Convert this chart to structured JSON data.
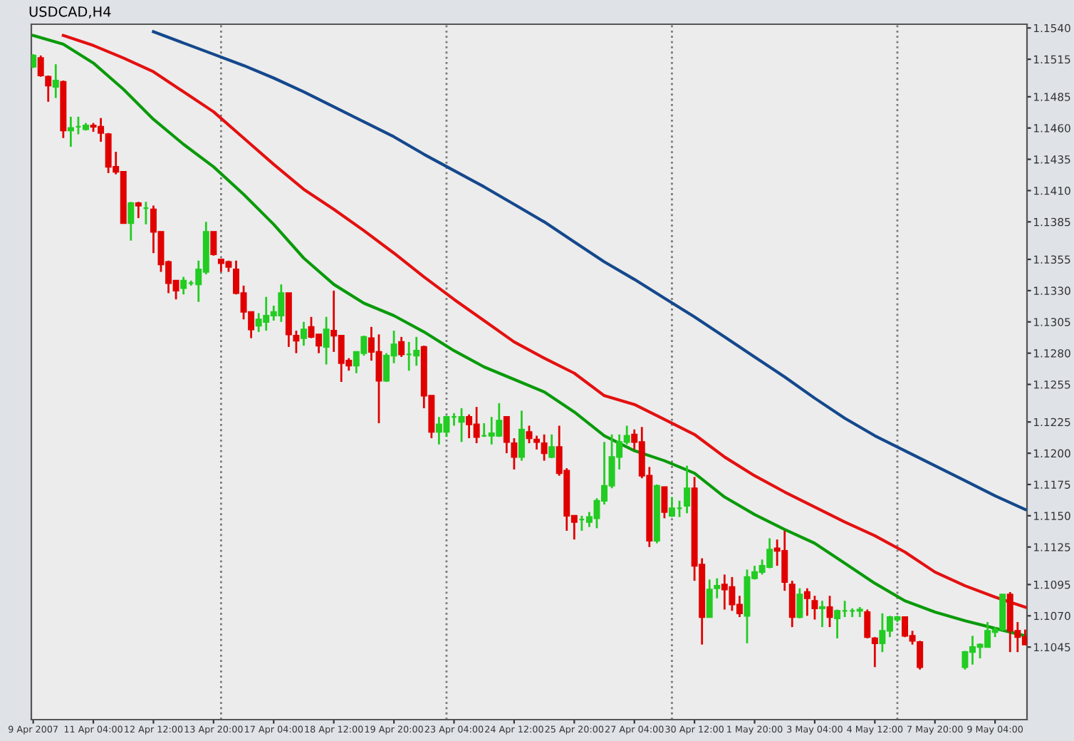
{
  "chart_data": {
    "type": "candlestick",
    "title": "USDCAD,H4",
    "categories": [
      "9 Apr 2007",
      null,
      null,
      null,
      null,
      null,
      null,
      null,
      "11 Apr 04:00",
      null,
      null,
      null,
      null,
      null,
      null,
      null,
      "12 Apr 12:00",
      null,
      null,
      null,
      null,
      null,
      null,
      null,
      "13 Apr 20:00",
      null,
      null,
      null,
      null,
      null,
      null,
      null,
      "17 Apr 04:00",
      null,
      null,
      null,
      null,
      null,
      null,
      null,
      "18 Apr 12:00",
      null,
      null,
      null,
      null,
      null,
      null,
      null,
      "19 Apr 20:00",
      null,
      null,
      null,
      null,
      null,
      null,
      null,
      "23 Apr 04:00",
      null,
      null,
      null,
      null,
      null,
      null,
      null,
      "24 Apr 12:00",
      null,
      null,
      null,
      null,
      null,
      null,
      null,
      "25 Apr 20:00",
      null,
      null,
      null,
      null,
      null,
      null,
      null,
      "27 Apr 04:00",
      null,
      null,
      null,
      null,
      null,
      null,
      null,
      "30 Apr 12:00",
      null,
      null,
      null,
      null,
      null,
      null,
      null,
      "1 May 20:00",
      null,
      null,
      null,
      null,
      null,
      null,
      null,
      "3 May 04:00",
      null,
      null,
      null,
      null,
      null,
      null,
      null,
      "4 May 12:00",
      null,
      null,
      null,
      null,
      null,
      null,
      null,
      "7 May 20:00",
      null,
      null,
      null,
      null,
      null,
      null,
      null,
      "9 May 04:00",
      null,
      null,
      null,
      null
    ],
    "ohlc": [
      [
        1.1509,
        1.1519,
        1.1508,
        1.1518
      ],
      [
        1.1516,
        1.1518,
        1.1501,
        1.1502
      ],
      [
        1.1501,
        1.1502,
        1.1481,
        1.1494
      ],
      [
        1.1493,
        1.1511,
        1.1484,
        1.1498
      ],
      [
        1.1497,
        1.1498,
        1.1452,
        1.1458
      ],
      [
        1.1458,
        1.1469,
        1.1445,
        1.146
      ],
      [
        1.1461,
        1.1469,
        1.1455,
        1.1461
      ],
      [
        1.1459,
        1.1464,
        1.1458,
        1.1462
      ],
      [
        1.1462,
        1.1464,
        1.1457,
        1.1461
      ],
      [
        1.1461,
        1.1468,
        1.1449,
        1.1456
      ],
      [
        1.1455,
        1.1456,
        1.1424,
        1.1429
      ],
      [
        1.1429,
        1.1441,
        1.1423,
        1.1425
      ],
      [
        1.1425,
        1.1425,
        1.1384,
        1.1384
      ],
      [
        1.1384,
        1.1401,
        1.137,
        1.14
      ],
      [
        1.14,
        1.1401,
        1.1388,
        1.1398
      ],
      [
        1.1396,
        1.1401,
        1.1383,
        1.1396
      ],
      [
        1.1395,
        1.1398,
        1.136,
        1.1377
      ],
      [
        1.1377,
        1.1377,
        1.1345,
        1.1351
      ],
      [
        1.1353,
        1.1354,
        1.1328,
        1.1336
      ],
      [
        1.1338,
        1.1338,
        1.1323,
        1.133
      ],
      [
        1.1332,
        1.1341,
        1.1327,
        1.1338
      ],
      [
        1.1336,
        1.1338,
        1.1334,
        1.1336
      ],
      [
        1.1335,
        1.1354,
        1.1321,
        1.1347
      ],
      [
        1.1345,
        1.1385,
        1.1343,
        1.1377
      ],
      [
        1.1377,
        1.1377,
        1.1358,
        1.1359
      ],
      [
        1.1355,
        1.1355,
        1.1345,
        1.1352
      ],
      [
        1.1353,
        1.1354,
        1.1345,
        1.1349
      ],
      [
        1.1347,
        1.1354,
        1.1327,
        1.1328
      ],
      [
        1.1328,
        1.1334,
        1.1307,
        1.1313
      ],
      [
        1.1313,
        1.1313,
        1.1292,
        1.1299
      ],
      [
        1.1302,
        1.1312,
        1.1297,
        1.1307
      ],
      [
        1.1305,
        1.1325,
        1.1298,
        1.131
      ],
      [
        1.131,
        1.1318,
        1.1306,
        1.1313
      ],
      [
        1.131,
        1.1335,
        1.1305,
        1.1328
      ],
      [
        1.1328,
        1.1328,
        1.1285,
        1.1295
      ],
      [
        1.1294,
        1.1298,
        1.128,
        1.129
      ],
      [
        1.1292,
        1.1305,
        1.1286,
        1.1299
      ],
      [
        1.1301,
        1.1309,
        1.1292,
        1.1293
      ],
      [
        1.1295,
        1.1295,
        1.128,
        1.1286
      ],
      [
        1.1285,
        1.1309,
        1.1271,
        1.1299
      ],
      [
        1.1298,
        1.133,
        1.1281,
        1.1294
      ],
      [
        1.1294,
        1.1294,
        1.1257,
        1.1272
      ],
      [
        1.1274,
        1.1276,
        1.1266,
        1.127
      ],
      [
        1.127,
        1.1281,
        1.1264,
        1.1281
      ],
      [
        1.128,
        1.1294,
        1.1278,
        1.1293
      ],
      [
        1.1292,
        1.1301,
        1.1274,
        1.1281
      ],
      [
        1.1281,
        1.1295,
        1.1224,
        1.1258
      ],
      [
        1.1258,
        1.128,
        1.1257,
        1.1278
      ],
      [
        1.1278,
        1.1298,
        1.1272,
        1.1287
      ],
      [
        1.1289,
        1.1293,
        1.1277,
        1.1279
      ],
      [
        1.1279,
        1.1289,
        1.1266,
        1.1279
      ],
      [
        1.1278,
        1.1293,
        1.127,
        1.1282
      ],
      [
        1.1285,
        1.1286,
        1.1236,
        1.1246
      ],
      [
        1.1246,
        1.1246,
        1.1212,
        1.1217
      ],
      [
        1.1217,
        1.1229,
        1.1207,
        1.1223
      ],
      [
        1.1217,
        1.123,
        1.1213,
        1.1229
      ],
      [
        1.1229,
        1.1232,
        1.1222,
        1.1229
      ],
      [
        1.1225,
        1.1236,
        1.1209,
        1.1229
      ],
      [
        1.1229,
        1.1231,
        1.1212,
        1.1223
      ],
      [
        1.1223,
        1.1237,
        1.1208,
        1.1213
      ],
      [
        1.1214,
        1.1224,
        1.1213,
        1.1214
      ],
      [
        1.1214,
        1.1229,
        1.1207,
        1.1216
      ],
      [
        1.1214,
        1.124,
        1.1213,
        1.1226
      ],
      [
        1.1229,
        1.1229,
        1.12,
        1.1209
      ],
      [
        1.1208,
        1.1212,
        1.1187,
        1.1197
      ],
      [
        1.1197,
        1.1234,
        1.1194,
        1.1219
      ],
      [
        1.1217,
        1.1222,
        1.1208,
        1.1212
      ],
      [
        1.1211,
        1.1214,
        1.1203,
        1.1209
      ],
      [
        1.1208,
        1.1215,
        1.1194,
        1.12
      ],
      [
        1.1197,
        1.1215,
        1.1196,
        1.1205
      ],
      [
        1.1205,
        1.1222,
        1.1182,
        1.1184
      ],
      [
        1.1186,
        1.1188,
        1.1138,
        1.115
      ],
      [
        1.115,
        1.115,
        1.1131,
        1.1145
      ],
      [
        1.1147,
        1.115,
        1.1138,
        1.1147
      ],
      [
        1.1145,
        1.1153,
        1.1141,
        1.1149
      ],
      [
        1.1148,
        1.1164,
        1.114,
        1.1162
      ],
      [
        1.1162,
        1.1209,
        1.1159,
        1.1174
      ],
      [
        1.1174,
        1.1215,
        1.1172,
        1.1197
      ],
      [
        1.1197,
        1.1215,
        1.1187,
        1.1209
      ],
      [
        1.1209,
        1.1222,
        1.1207,
        1.1214
      ],
      [
        1.1215,
        1.1219,
        1.1203,
        1.1209
      ],
      [
        1.1209,
        1.1221,
        1.118,
        1.1182
      ],
      [
        1.1182,
        1.1189,
        1.1125,
        1.113
      ],
      [
        1.113,
        1.1175,
        1.1128,
        1.1174
      ],
      [
        1.1173,
        1.1173,
        1.1148,
        1.1153
      ],
      [
        1.115,
        1.1165,
        1.1149,
        1.1156
      ],
      [
        1.1156,
        1.1162,
        1.1149,
        1.1156
      ],
      [
        1.1158,
        1.119,
        1.1152,
        1.1172
      ],
      [
        1.1172,
        1.1181,
        1.1098,
        1.111
      ],
      [
        1.1111,
        1.1116,
        1.1047,
        1.1069
      ],
      [
        1.1069,
        1.1099,
        1.1069,
        1.1091
      ],
      [
        1.1092,
        1.11,
        1.1084,
        1.1094
      ],
      [
        1.1095,
        1.1103,
        1.1075,
        1.1091
      ],
      [
        1.1093,
        1.1101,
        1.1074,
        1.1079
      ],
      [
        1.1079,
        1.1086,
        1.1069,
        1.1072
      ],
      [
        1.107,
        1.1107,
        1.1048,
        1.1101
      ],
      [
        1.11,
        1.111,
        1.1099,
        1.1105
      ],
      [
        1.1105,
        1.1115,
        1.1103,
        1.111
      ],
      [
        1.1109,
        1.1132,
        1.1108,
        1.1123
      ],
      [
        1.1124,
        1.1131,
        1.111,
        1.1122
      ],
      [
        1.1122,
        1.1138,
        1.109,
        1.1097
      ],
      [
        1.1095,
        1.1098,
        1.1061,
        1.1069
      ],
      [
        1.1069,
        1.1092,
        1.1068,
        1.1087
      ],
      [
        1.1089,
        1.1092,
        1.107,
        1.1084
      ],
      [
        1.1082,
        1.1086,
        1.1067,
        1.1076
      ],
      [
        1.1076,
        1.1082,
        1.1061,
        1.1077
      ],
      [
        1.1077,
        1.1086,
        1.1061,
        1.1069
      ],
      [
        1.1068,
        1.1075,
        1.1052,
        1.1074
      ],
      [
        1.1074,
        1.1082,
        1.1069,
        1.1074
      ],
      [
        1.1074,
        1.1076,
        1.1069,
        1.1074
      ],
      [
        1.1074,
        1.1077,
        1.1069,
        1.1075
      ],
      [
        1.1073,
        1.1075,
        1.1052,
        1.1053
      ],
      [
        1.1052,
        1.1053,
        1.1029,
        1.1048
      ],
      [
        1.1048,
        1.1072,
        1.1041,
        1.1058
      ],
      [
        1.1058,
        1.107,
        1.1053,
        1.1069
      ],
      [
        1.1067,
        1.107,
        1.1065,
        1.1069
      ],
      [
        1.1069,
        1.1069,
        1.1053,
        1.1054
      ],
      [
        1.1054,
        1.1058,
        1.1047,
        1.105
      ],
      [
        1.1049,
        1.105,
        1.1027,
        1.1029
      ],
      null,
      null,
      null,
      null,
      null,
      [
        1.1029,
        1.1042,
        1.1027,
        1.1041
      ],
      [
        1.1041,
        1.1054,
        1.1031,
        1.1045
      ],
      [
        1.1045,
        1.1048,
        1.1036,
        1.1047
      ],
      [
        1.1045,
        1.1065,
        1.1045,
        1.1058
      ],
      [
        1.1057,
        1.1061,
        1.1053,
        1.1059
      ],
      [
        1.1059,
        1.1087,
        1.1058,
        1.1087
      ],
      [
        1.1087,
        1.1089,
        1.1041,
        1.1058
      ],
      [
        1.1058,
        1.1065,
        1.1041,
        1.1053
      ],
      [
        1.1053,
        1.1059,
        1.1047,
        1.1047
      ]
    ],
    "colors": [
      "#22cc22",
      "#e00000",
      "#e00000",
      "#22cc22",
      "#e00000",
      "#22cc22",
      "#22cc22",
      "#22cc22",
      "#e00000",
      "#e00000",
      "#e00000",
      "#e00000",
      "#e00000",
      "#22cc22",
      "#e00000",
      "#22cc22",
      "#e00000",
      "#e00000",
      "#e00000",
      "#e00000",
      "#22cc22",
      "#22cc22",
      "#22cc22",
      "#22cc22",
      "#e00000",
      "#e00000",
      "#e00000",
      "#e00000",
      "#e00000",
      "#e00000",
      "#22cc22",
      "#22cc22",
      "#22cc22",
      "#22cc22",
      "#e00000",
      "#e00000",
      "#22cc22",
      "#e00000",
      "#e00000",
      "#22cc22",
      "#e00000",
      "#e00000",
      "#e00000",
      "#22cc22",
      "#22cc22",
      "#e00000",
      "#e00000",
      "#22cc22",
      "#22cc22",
      "#e00000",
      "#22cc22",
      "#22cc22",
      "#e00000",
      "#e00000",
      "#22cc22",
      "#22cc22",
      "#22cc22",
      "#22cc22",
      "#e00000",
      "#e00000",
      "#22cc22",
      "#22cc22",
      "#22cc22",
      "#e00000",
      "#e00000",
      "#22cc22",
      "#e00000",
      "#e00000",
      "#e00000",
      "#22cc22",
      "#e00000",
      "#e00000",
      "#e00000",
      "#22cc22",
      "#22cc22",
      "#22cc22",
      "#22cc22",
      "#22cc22",
      "#22cc22",
      "#22cc22",
      "#e00000",
      "#e00000",
      "#e00000",
      "#22cc22",
      "#e00000",
      "#22cc22",
      "#22cc22",
      "#22cc22",
      "#e00000",
      "#e00000",
      "#22cc22",
      "#22cc22",
      "#e00000",
      "#e00000",
      "#e00000",
      "#22cc22",
      "#22cc22",
      "#22cc22",
      "#22cc22",
      "#e00000",
      "#e00000",
      "#e00000",
      "#22cc22",
      "#e00000",
      "#e00000",
      "#22cc22",
      "#e00000",
      "#22cc22",
      "#22cc22",
      "#22cc22",
      "#22cc22",
      "#e00000",
      "#e00000",
      "#22cc22",
      "#22cc22",
      "#22cc22",
      "#e00000",
      "#e00000",
      "#e00000",
      null,
      null,
      null,
      null,
      null,
      "#22cc22",
      "#22cc22",
      "#22cc22",
      "#22cc22",
      "#22cc22",
      "#22cc22",
      "#e00000",
      "#e00000",
      "#e00000"
    ],
    "series": [
      {
        "type": "line",
        "color": "#0a9a0a",
        "values": [
          1.1534,
          null,
          null,
          null,
          1.1527,
          null,
          null,
          null,
          1.1512,
          null,
          null,
          null,
          1.1491,
          null,
          null,
          null,
          1.1467,
          null,
          null,
          null,
          1.1447,
          null,
          null,
          null,
          1.1429,
          null,
          null,
          null,
          1.1407,
          null,
          null,
          null,
          1.1383,
          null,
          null,
          null,
          1.1356,
          null,
          null,
          null,
          1.1335,
          null,
          null,
          null,
          1.132,
          null,
          null,
          null,
          1.131,
          null,
          null,
          null,
          1.1297,
          null,
          null,
          null,
          1.1282,
          null,
          null,
          null,
          1.1269,
          null,
          null,
          null,
          1.1259,
          null,
          null,
          null,
          1.1249,
          null,
          null,
          null,
          1.1233,
          null,
          null,
          null,
          1.1214,
          null,
          null,
          null,
          1.1202,
          null,
          null,
          null,
          1.1194,
          null,
          null,
          null,
          1.1184,
          null,
          null,
          null,
          1.1165,
          null,
          null,
          null,
          1.1151,
          null,
          null,
          null,
          1.1139,
          null,
          null,
          null,
          1.1128,
          null,
          null,
          null,
          1.1112,
          null,
          null,
          null,
          1.1096,
          null,
          null,
          null,
          1.1082,
          null,
          null,
          null,
          1.1073,
          null,
          null,
          null,
          1.1066,
          null,
          null,
          null,
          1.106,
          null,
          null,
          null,
          1.1054
        ]
      },
      {
        "type": "line",
        "color": "#e41010",
        "values": [
          null,
          null,
          null,
          null,
          1.1534,
          null,
          null,
          null,
          1.1526,
          null,
          null,
          null,
          1.1516,
          null,
          null,
          null,
          1.1505,
          null,
          null,
          null,
          1.1489,
          null,
          null,
          null,
          1.1473,
          null,
          null,
          null,
          1.1452,
          null,
          null,
          null,
          1.1431,
          null,
          null,
          null,
          1.1411,
          null,
          null,
          null,
          1.1395,
          null,
          null,
          null,
          1.1378,
          null,
          null,
          null,
          1.136,
          null,
          null,
          null,
          1.1341,
          null,
          null,
          null,
          1.1323,
          null,
          null,
          null,
          1.1306,
          null,
          null,
          null,
          1.1289,
          null,
          null,
          null,
          1.1276,
          null,
          null,
          null,
          1.1264,
          null,
          null,
          null,
          1.1246,
          null,
          null,
          null,
          1.1239,
          null,
          null,
          null,
          1.1227,
          null,
          null,
          null,
          1.1215,
          null,
          null,
          null,
          1.1197,
          null,
          null,
          null,
          1.1182,
          null,
          null,
          null,
          1.1169,
          null,
          null,
          null,
          1.1157,
          null,
          null,
          null,
          1.1145,
          null,
          null,
          null,
          1.1134,
          null,
          null,
          null,
          1.1121,
          null,
          null,
          null,
          1.1105,
          null,
          null,
          null,
          1.1094,
          null,
          null,
          null,
          1.1085,
          null,
          null,
          null,
          1.1077
        ]
      },
      {
        "type": "line",
        "color": "#14488c",
        "values": [
          null,
          null,
          null,
          null,
          null,
          null,
          null,
          null,
          null,
          null,
          null,
          null,
          null,
          null,
          null,
          null,
          1.1537,
          null,
          null,
          null,
          1.1528,
          null,
          null,
          null,
          1.1519,
          null,
          null,
          null,
          1.151,
          null,
          null,
          null,
          1.15,
          null,
          null,
          null,
          1.1489,
          null,
          null,
          null,
          1.1477,
          null,
          null,
          null,
          1.1465,
          null,
          null,
          null,
          1.1453,
          null,
          null,
          null,
          1.1439,
          null,
          null,
          null,
          1.1426,
          null,
          null,
          null,
          1.1413,
          null,
          null,
          null,
          1.1399,
          null,
          null,
          null,
          1.1385,
          null,
          null,
          null,
          1.1369,
          null,
          null,
          null,
          1.1353,
          null,
          null,
          null,
          1.1339,
          null,
          null,
          null,
          1.1324,
          null,
          null,
          null,
          1.1309,
          null,
          null,
          null,
          1.1293,
          null,
          null,
          null,
          1.1277,
          null,
          null,
          null,
          1.1261,
          null,
          null,
          null,
          1.1244,
          null,
          null,
          null,
          1.1228,
          null,
          null,
          null,
          1.1214,
          null,
          null,
          null,
          1.1202,
          null,
          null,
          null,
          1.119,
          null,
          null,
          null,
          1.1178,
          null,
          null,
          null,
          1.1166,
          null,
          null,
          null,
          1.1155
        ]
      }
    ],
    "ylim": [
      1.0987,
      1.1543
    ],
    "yticks": [
      {
        "value": 1.154,
        "label": "1.1540"
      },
      {
        "value": 1.1515,
        "label": "1.1515"
      },
      {
        "value": 1.1485,
        "label": "1.1485"
      },
      {
        "value": 1.146,
        "label": "1.1460"
      },
      {
        "value": 1.1435,
        "label": "1.1435"
      },
      {
        "value": 1.141,
        "label": "1.1410"
      },
      {
        "value": 1.1385,
        "label": "1.1385"
      },
      {
        "value": 1.1355,
        "label": "1.1355"
      },
      {
        "value": 1.133,
        "label": "1.1330"
      },
      {
        "value": 1.1305,
        "label": "1.1305"
      },
      {
        "value": 1.128,
        "label": "1.1280"
      },
      {
        "value": 1.1255,
        "label": "1.1255"
      },
      {
        "value": 1.1225,
        "label": "1.1225"
      },
      {
        "value": 1.12,
        "label": "1.1200"
      },
      {
        "value": 1.1175,
        "label": "1.1175"
      },
      {
        "value": 1.115,
        "label": "1.1150"
      },
      {
        "value": 1.1125,
        "label": "1.1125"
      },
      {
        "value": 1.1095,
        "label": "1.1095"
      },
      {
        "value": 1.107,
        "label": "1.1070"
      },
      {
        "value": 1.1045,
        "label": "1.1045"
      }
    ],
    "grid": false,
    "legend": false
  }
}
